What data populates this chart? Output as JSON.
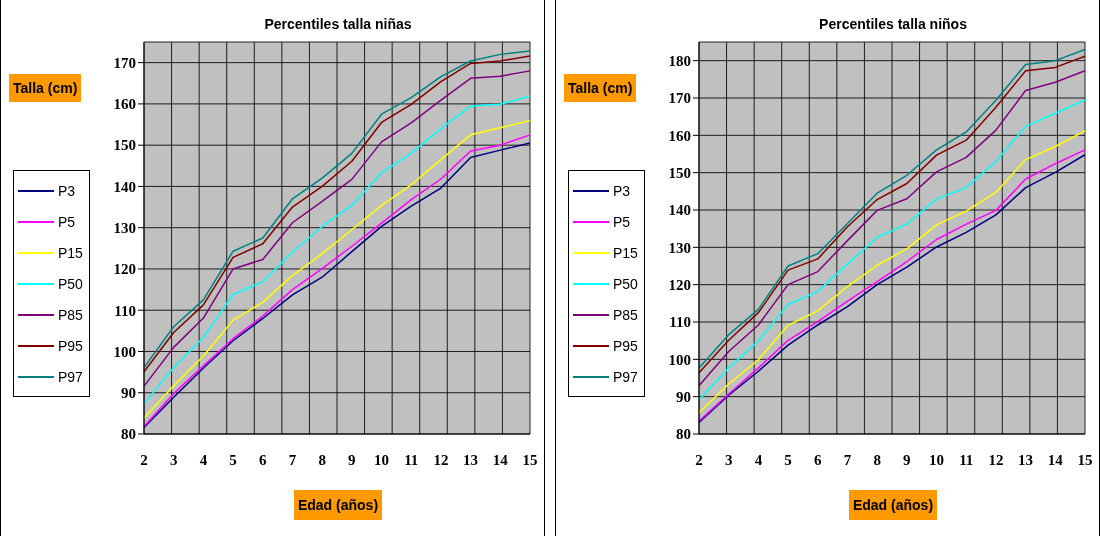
{
  "chart_data": [
    {
      "type": "line",
      "title": "Percentiles talla niñas",
      "xlabel": "Edad (años)",
      "ylabel": "Talla (cm)",
      "categories": [
        "2",
        "3",
        "4",
        "5",
        "6",
        "7",
        "8",
        "9",
        "10",
        "11",
        "12",
        "13",
        "14",
        "15"
      ],
      "ylim": [
        80,
        175
      ],
      "yticks": [
        80,
        90,
        100,
        110,
        120,
        130,
        140,
        150,
        160,
        170
      ],
      "grid": true,
      "legend": "left",
      "series": [
        {
          "name": "P3",
          "color": "#000080",
          "values": [
            81.6,
            88.9,
            96.0,
            102.6,
            108.0,
            113.7,
            118.0,
            124.2,
            130.3,
            135.2,
            139.6,
            147.0,
            148.8,
            150.5
          ]
        },
        {
          "name": "P5",
          "color": "#ff00ff",
          "values": [
            81.8,
            89.8,
            96.5,
            103.1,
            108.6,
            115.0,
            120.1,
            125.5,
            131.1,
            136.8,
            141.8,
            148.6,
            150.0,
            152.5
          ]
        },
        {
          "name": "P15",
          "color": "#ffff00",
          "values": [
            83.9,
            91.7,
            98.9,
            107.6,
            111.9,
            118.4,
            123.7,
            129.5,
            135.4,
            140.4,
            146.5,
            152.5,
            154.2,
            156.0
          ]
        },
        {
          "name": "P50",
          "color": "#00ffff",
          "values": [
            87.3,
            96.1,
            103.4,
            113.8,
            116.9,
            124.1,
            130.3,
            135.4,
            143.3,
            148.0,
            154.0,
            159.5,
            159.9,
            161.9
          ]
        },
        {
          "name": "P85",
          "color": "#800080",
          "values": [
            91.6,
            101.0,
            108.1,
            120.0,
            122.3,
            131.2,
            136.4,
            141.7,
            150.8,
            155.4,
            160.9,
            166.2,
            166.7,
            168.0
          ]
        },
        {
          "name": "P95",
          "color": "#800000",
          "values": [
            95.1,
            104.6,
            111.3,
            122.8,
            126.1,
            135.0,
            140.0,
            146.1,
            155.5,
            159.9,
            165.4,
            169.8,
            170.4,
            171.6
          ]
        },
        {
          "name": "P97",
          "color": "#008080",
          "values": [
            96.1,
            106.0,
            112.5,
            124.3,
            127.5,
            137.0,
            142.0,
            148.0,
            157.5,
            161.5,
            166.6,
            170.4,
            172.0,
            172.8
          ]
        }
      ]
    },
    {
      "type": "line",
      "title": "Percentiles talla niños",
      "xlabel": "Edad (años)",
      "ylabel": "Talla (cm)",
      "categories": [
        "2",
        "3",
        "4",
        "5",
        "6",
        "7",
        "8",
        "9",
        "10",
        "11",
        "12",
        "13",
        "14",
        "15"
      ],
      "ylim": [
        80,
        185
      ],
      "yticks": [
        80,
        90,
        100,
        110,
        120,
        130,
        140,
        150,
        160,
        170,
        180
      ],
      "grid": true,
      "legend": "left",
      "series": [
        {
          "name": "P3",
          "color": "#000080",
          "values": [
            83.1,
            90.4,
            96.8,
            103.8,
            109.2,
            114.1,
            120.0,
            124.7,
            130.1,
            134.0,
            138.7,
            146.0,
            150.1,
            154.8
          ]
        },
        {
          "name": "P5",
          "color": "#ff00ff",
          "values": [
            83.5,
            90.7,
            97.7,
            105.1,
            110.1,
            115.6,
            120.8,
            126.2,
            132.1,
            136.2,
            139.9,
            148.3,
            152.4,
            156.1
          ]
        },
        {
          "name": "P15",
          "color": "#ffff00",
          "values": [
            85.7,
            93.4,
            99.9,
            109.1,
            113.0,
            119.5,
            125.2,
            129.6,
            136.0,
            139.7,
            144.7,
            153.5,
            157.0,
            161.2
          ]
        },
        {
          "name": "P50",
          "color": "#00ffff",
          "values": [
            89.2,
            97.7,
            104.9,
            114.7,
            118.2,
            125.5,
            132.7,
            136.2,
            142.9,
            146.0,
            153.0,
            162.4,
            165.9,
            169.5
          ]
        },
        {
          "name": "P85",
          "color": "#800080",
          "values": [
            92.9,
            102.1,
            109.2,
            120.0,
            123.5,
            131.8,
            139.9,
            143.0,
            150.2,
            154.1,
            161.4,
            172.0,
            174.2,
            177.3
          ]
        },
        {
          "name": "P95",
          "color": "#800000",
          "values": [
            96.4,
            105.1,
            112.5,
            123.9,
            126.9,
            135.5,
            142.8,
            147.1,
            154.7,
            158.7,
            167.5,
            177.3,
            178.2,
            181.2
          ]
        },
        {
          "name": "P97",
          "color": "#008080",
          "values": [
            97.7,
            106.6,
            113.4,
            125.0,
            128.3,
            136.4,
            144.5,
            149.3,
            156.1,
            160.9,
            169.4,
            179.0,
            180.0,
            183.0
          ]
        }
      ]
    }
  ]
}
